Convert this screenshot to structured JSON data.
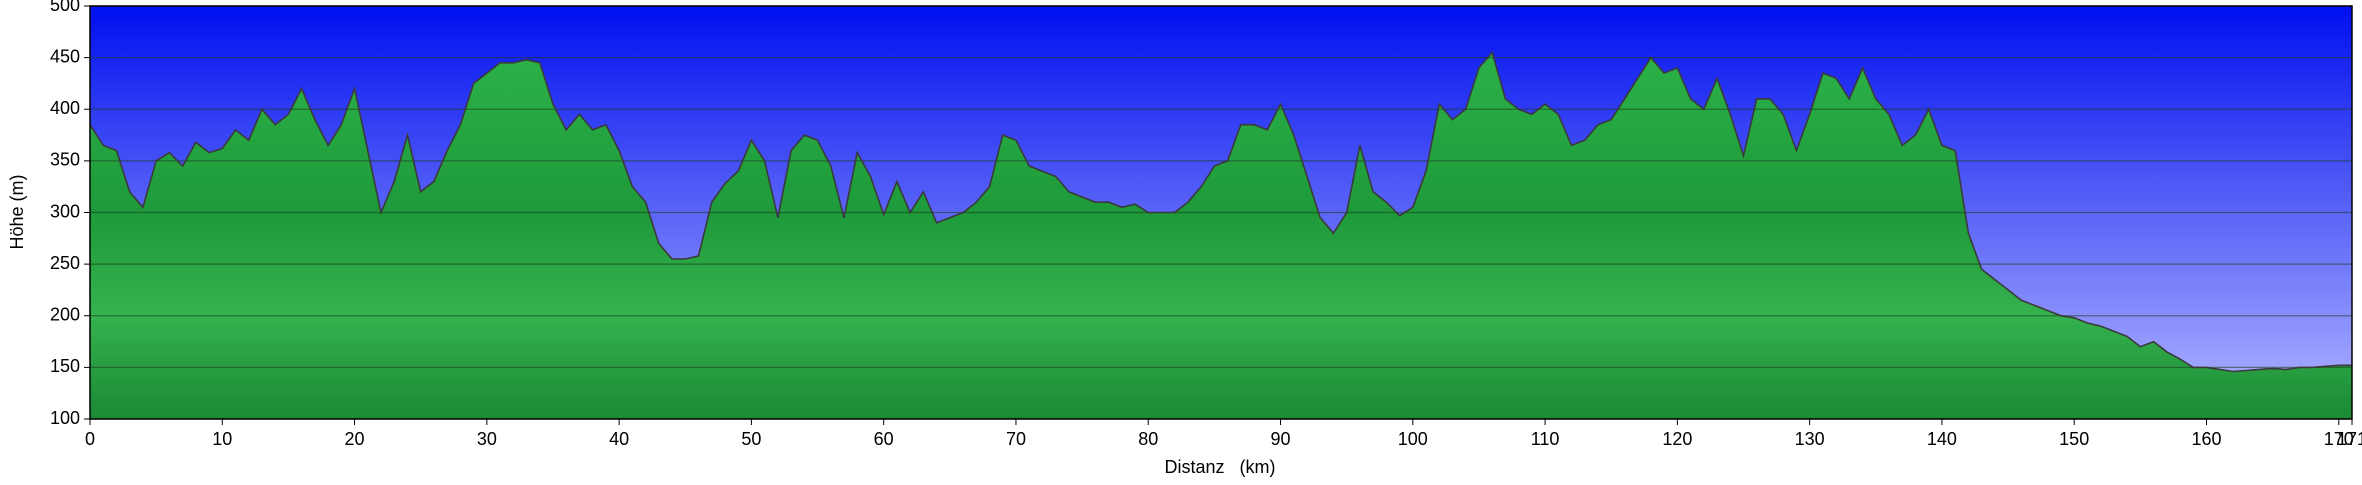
{
  "chart_data": {
    "type": "area",
    "xlabel": "Distanz   (km)",
    "ylabel": "Höhe (m)",
    "x": [
      0,
      1,
      2,
      3,
      4,
      5,
      6,
      7,
      8,
      9,
      10,
      11,
      12,
      13,
      14,
      15,
      16,
      17,
      18,
      19,
      20,
      21,
      22,
      23,
      24,
      25,
      26,
      27,
      28,
      29,
      30,
      31,
      32,
      33,
      34,
      35,
      36,
      37,
      38,
      39,
      40,
      41,
      42,
      43,
      44,
      45,
      46,
      47,
      48,
      49,
      50,
      51,
      52,
      53,
      54,
      55,
      56,
      57,
      58,
      59,
      60,
      61,
      62,
      63,
      64,
      65,
      66,
      67,
      68,
      69,
      70,
      71,
      72,
      73,
      74,
      75,
      76,
      77,
      78,
      79,
      80,
      81,
      82,
      83,
      84,
      85,
      86,
      87,
      88,
      89,
      90,
      91,
      92,
      93,
      94,
      95,
      96,
      97,
      98,
      99,
      100,
      101,
      102,
      103,
      104,
      105,
      106,
      107,
      108,
      109,
      110,
      111,
      112,
      113,
      114,
      115,
      116,
      117,
      118,
      119,
      120,
      121,
      122,
      123,
      124,
      125,
      126,
      127,
      128,
      129,
      130,
      131,
      132,
      133,
      134,
      135,
      136,
      137,
      138,
      139,
      140,
      141,
      142,
      143,
      144,
      145,
      146,
      147,
      148,
      149,
      150,
      151,
      152,
      153,
      154,
      155,
      156,
      157,
      158,
      159,
      160,
      161,
      162,
      163,
      164,
      165,
      166,
      167,
      168,
      169,
      170,
      171
    ],
    "values": [
      385,
      365,
      360,
      320,
      305,
      350,
      358,
      345,
      368,
      358,
      362,
      380,
      370,
      400,
      385,
      395,
      420,
      390,
      365,
      385,
      420,
      360,
      300,
      330,
      375,
      320,
      330,
      360,
      385,
      425,
      435,
      445,
      445,
      448,
      445,
      405,
      380,
      395,
      380,
      385,
      360,
      325,
      310,
      270,
      255,
      255,
      258,
      310,
      328,
      340,
      370,
      350,
      295,
      360,
      375,
      370,
      345,
      295,
      358,
      335,
      298,
      330,
      300,
      320,
      290,
      295,
      300,
      310,
      325,
      375,
      370,
      345,
      340,
      335,
      320,
      315,
      310,
      310,
      305,
      308,
      300,
      300,
      300,
      310,
      325,
      345,
      350,
      385,
      385,
      380,
      405,
      375,
      335,
      295,
      280,
      300,
      365,
      320,
      310,
      297,
      305,
      340,
      405,
      390,
      400,
      440,
      455,
      410,
      400,
      395,
      405,
      395,
      365,
      370,
      385,
      390,
      410,
      430,
      450,
      435,
      440,
      410,
      400,
      430,
      395,
      355,
      410,
      410,
      395,
      360,
      395,
      435,
      430,
      410,
      440,
      410,
      395,
      365,
      375,
      400,
      365,
      360,
      280,
      245,
      235,
      225,
      215,
      210,
      205,
      200,
      198,
      193,
      190,
      185,
      180,
      170,
      175,
      165,
      158,
      150,
      150,
      148,
      146,
      147,
      148,
      149,
      148,
      150,
      150,
      151,
      152,
      152
    ],
    "color": "#2aa845",
    "line_color": "#3a3a3a",
    "xlim": [
      0,
      171
    ],
    "ylim": [
      100,
      500
    ],
    "xticks": [
      0,
      10,
      20,
      30,
      40,
      50,
      60,
      70,
      80,
      90,
      100,
      110,
      120,
      130,
      140,
      150,
      160,
      170,
      171
    ],
    "yticks": [
      100,
      150,
      200,
      250,
      300,
      350,
      400,
      450,
      500
    ],
    "grid": true
  }
}
